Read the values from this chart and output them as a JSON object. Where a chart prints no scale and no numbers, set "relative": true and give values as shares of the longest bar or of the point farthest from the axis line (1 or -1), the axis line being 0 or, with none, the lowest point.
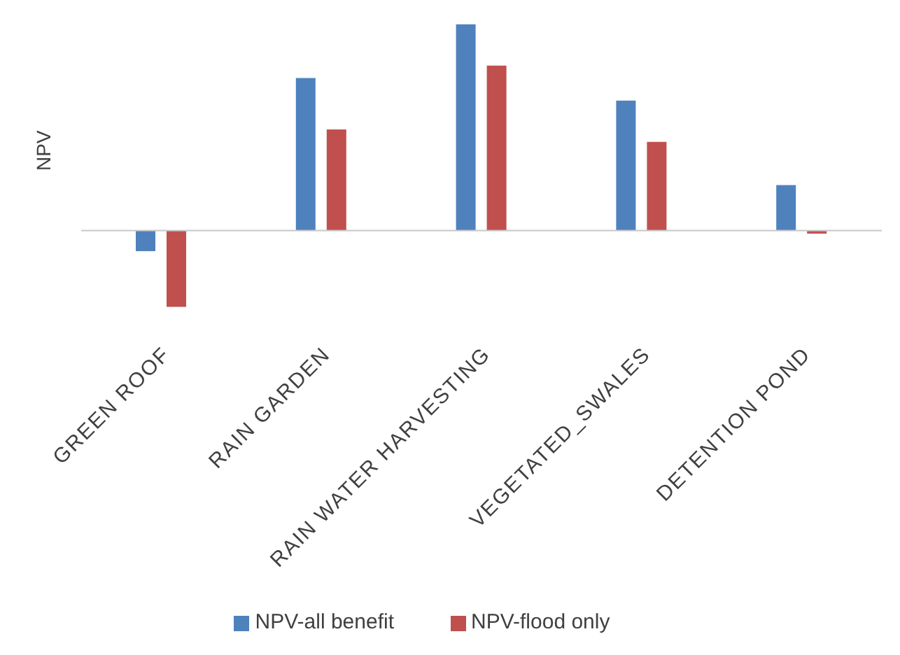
{
  "chart_data": {
    "type": "bar",
    "relative": true,
    "ylabel": "NPV",
    "categories": [
      "GREEN ROOF",
      "RAIN GARDEN",
      "RAIN WATER HARVESTING",
      "VEGETATED_SWALES",
      "DETENTION POND"
    ],
    "series": [
      {
        "name": "NPV-all benefit",
        "color": "#4f81bd",
        "values": [
          -0.1,
          0.74,
          1,
          0.63,
          0.22
        ]
      },
      {
        "name": "NPV-flood only",
        "color": "#c0504d",
        "values": [
          -0.37,
          0.49,
          0.8,
          0.43,
          -0.015
        ]
      }
    ],
    "legend": "bottom"
  }
}
